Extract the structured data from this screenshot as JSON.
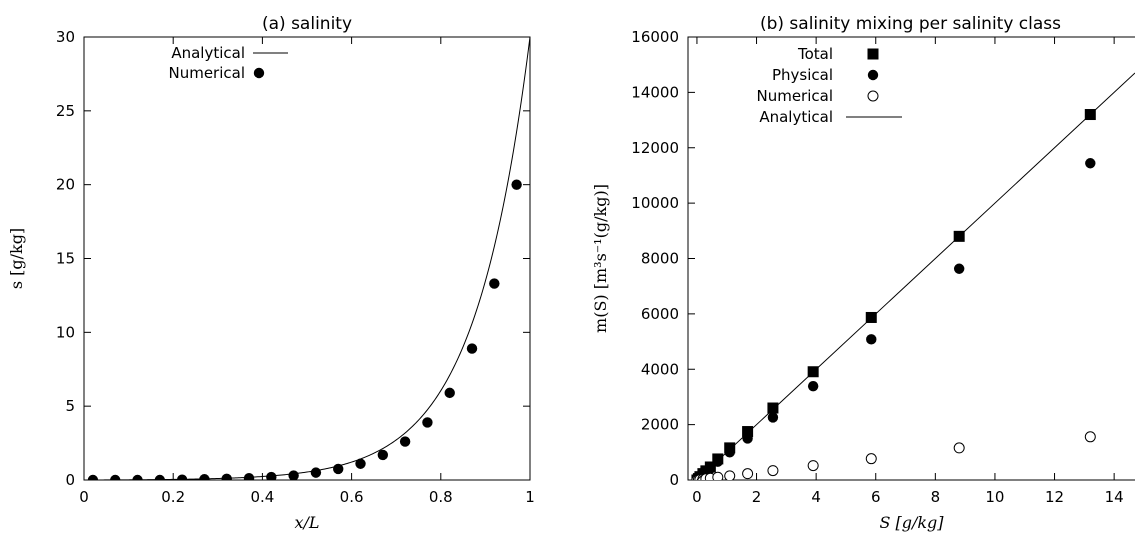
{
  "chart_data": [
    {
      "type": "scatter",
      "title": "(a) salinity",
      "xlabel": "x/L",
      "ylabel": "s [g/kg]",
      "xlim": [
        0,
        1
      ],
      "ylim": [
        0,
        30
      ],
      "xticks": [
        0,
        0.2,
        0.4,
        0.6,
        0.8,
        1
      ],
      "yticks": [
        0,
        5,
        10,
        15,
        20,
        25,
        30
      ],
      "legend_position": "top-left",
      "grid": false,
      "series": [
        {
          "name": "Analytical",
          "style": "line",
          "function": "30*(exp(8*x)-1)/(exp(8)-1)"
        },
        {
          "name": "Numerical",
          "style": "filled-circle",
          "x": [
            0.02,
            0.07,
            0.12,
            0.17,
            0.22,
            0.27,
            0.32,
            0.37,
            0.42,
            0.47,
            0.52,
            0.57,
            0.62,
            0.67,
            0.72,
            0.77,
            0.82,
            0.87,
            0.92,
            0.97
          ],
          "y": [
            0.0,
            0.0,
            0.0,
            0.0,
            0.02,
            0.05,
            0.08,
            0.12,
            0.2,
            0.3,
            0.5,
            0.75,
            1.1,
            1.7,
            2.6,
            3.9,
            5.9,
            8.9,
            13.3,
            20.0
          ]
        }
      ]
    },
    {
      "type": "scatter",
      "title": "(b) salinity mixing per salinity class",
      "xlabel": "S [g/kg]",
      "ylabel": "m(S) [m³s⁻¹(g/kg)]",
      "xlim": [
        -0.3,
        14.7
      ],
      "ylim": [
        0,
        16000
      ],
      "xticks": [
        0,
        2,
        4,
        6,
        8,
        10,
        12,
        14
      ],
      "yticks": [
        0,
        2000,
        4000,
        6000,
        8000,
        10000,
        12000,
        14000,
        16000
      ],
      "legend_position": "top-left",
      "grid": false,
      "series": [
        {
          "name": "Total",
          "style": "filled-square",
          "x": [
            0.0,
            0.05,
            0.1,
            0.2,
            0.3,
            0.45,
            0.7,
            1.1,
            1.7,
            2.55,
            3.9,
            5.85,
            8.8,
            13.2
          ],
          "y": [
            0,
            50,
            120,
            230,
            330,
            470,
            760,
            1160,
            1750,
            2600,
            3910,
            5870,
            8800,
            13200
          ]
        },
        {
          "name": "Physical",
          "style": "filled-circle",
          "x": [
            0.0,
            0.05,
            0.1,
            0.2,
            0.3,
            0.45,
            0.7,
            1.1,
            1.7,
            2.55,
            3.9,
            5.85,
            8.8,
            13.2
          ],
          "y": [
            0,
            45,
            100,
            200,
            290,
            410,
            660,
            1000,
            1500,
            2260,
            3390,
            5080,
            7630,
            11440
          ]
        },
        {
          "name": "Numerical",
          "style": "open-circle",
          "x": [
            0.0,
            0.05,
            0.1,
            0.2,
            0.3,
            0.45,
            0.7,
            1.1,
            1.7,
            2.55,
            3.9,
            5.85,
            8.8,
            13.2
          ],
          "y": [
            0,
            5,
            15,
            30,
            45,
            65,
            100,
            150,
            230,
            340,
            520,
            770,
            1160,
            1560
          ]
        },
        {
          "name": "Analytical",
          "style": "line",
          "x": [
            0,
            14.7
          ],
          "y": [
            0,
            14700
          ]
        }
      ]
    }
  ]
}
